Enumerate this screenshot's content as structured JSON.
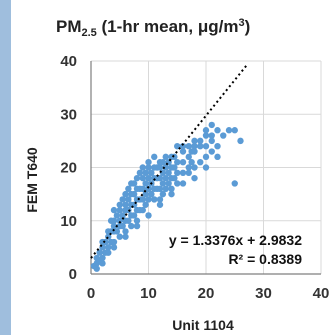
{
  "colors": {
    "left_bar": "#9fbedd",
    "points": "#5b9bd5",
    "gridline": "#d9d9d9",
    "axis": "#7f7f7f",
    "trendline": "#000000"
  },
  "chart_data": {
    "type": "scatter",
    "title_main": "PM",
    "title_sub": "2.5",
    "title_rest": " (1-hr mean, μg/m",
    "title_sup": "3",
    "title_end": ")",
    "xlabel": "Unit 1104",
    "ylabel": "FEM T640",
    "xlim": [
      0,
      40
    ],
    "ylim": [
      0,
      40
    ],
    "xticks": [
      "0",
      "10",
      "20",
      "30",
      "40"
    ],
    "yticks": [
      "0",
      "10",
      "20",
      "30",
      "40"
    ],
    "grid": true,
    "trendline": {
      "slope": 1.3376,
      "intercept": 2.9832,
      "x_range": [
        0,
        27
      ],
      "style": "dotted"
    },
    "equation_label": "y = 1.3376x + 2.9832",
    "r2_label": "R² = 0.8389",
    "series": [
      {
        "points": [
          [
            0.5,
            1.5
          ],
          [
            1,
            2
          ],
          [
            1,
            3
          ],
          [
            1.5,
            2.5
          ],
          [
            1.5,
            4
          ],
          [
            2,
            3
          ],
          [
            2,
            5
          ],
          [
            2,
            6
          ],
          [
            2.5,
            4
          ],
          [
            2.5,
            6
          ],
          [
            3,
            4
          ],
          [
            3,
            5
          ],
          [
            3,
            7
          ],
          [
            3,
            8
          ],
          [
            3.5,
            6
          ],
          [
            3.5,
            8
          ],
          [
            3.5,
            10
          ],
          [
            4,
            6
          ],
          [
            4,
            8
          ],
          [
            4,
            9
          ],
          [
            4,
            10
          ],
          [
            4,
            12
          ],
          [
            4.5,
            8
          ],
          [
            4.5,
            11
          ],
          [
            5,
            7
          ],
          [
            5,
            9
          ],
          [
            5,
            10
          ],
          [
            5,
            12
          ],
          [
            5,
            13
          ],
          [
            5.5,
            9
          ],
          [
            5.5,
            11
          ],
          [
            5.5,
            14
          ],
          [
            6,
            8
          ],
          [
            6,
            10
          ],
          [
            6,
            12
          ],
          [
            6,
            13
          ],
          [
            6,
            15
          ],
          [
            6.5,
            10
          ],
          [
            6.5,
            12
          ],
          [
            6.5,
            14
          ],
          [
            6.5,
            16
          ],
          [
            7,
            9
          ],
          [
            7,
            11
          ],
          [
            7,
            13
          ],
          [
            7,
            15
          ],
          [
            7,
            17
          ],
          [
            7.5,
            11
          ],
          [
            7.5,
            13
          ],
          [
            7.5,
            15
          ],
          [
            7.5,
            17
          ],
          [
            8,
            10
          ],
          [
            8,
            12
          ],
          [
            8,
            14
          ],
          [
            8,
            16
          ],
          [
            8,
            18
          ],
          [
            8.5,
            12
          ],
          [
            8.5,
            14
          ],
          [
            8.5,
            16
          ],
          [
            8.5,
            19
          ],
          [
            9,
            12
          ],
          [
            9,
            14
          ],
          [
            9,
            16
          ],
          [
            9,
            18
          ],
          [
            9,
            20
          ],
          [
            9.5,
            13
          ],
          [
            9.5,
            15
          ],
          [
            9.5,
            17
          ],
          [
            9.5,
            19
          ],
          [
            10,
            14
          ],
          [
            10,
            16
          ],
          [
            10,
            18
          ],
          [
            10,
            20
          ],
          [
            10,
            21
          ],
          [
            10.5,
            15
          ],
          [
            10.5,
            17
          ],
          [
            10.5,
            19
          ],
          [
            11,
            14
          ],
          [
            11,
            16
          ],
          [
            11,
            18
          ],
          [
            11,
            20
          ],
          [
            11,
            22
          ],
          [
            11.5,
            16
          ],
          [
            11.5,
            18
          ],
          [
            11.5,
            20
          ],
          [
            12,
            14
          ],
          [
            12,
            16
          ],
          [
            12,
            18
          ],
          [
            12,
            20
          ],
          [
            12,
            21
          ],
          [
            12.5,
            15
          ],
          [
            12.5,
            17
          ],
          [
            12.5,
            19
          ],
          [
            12.5,
            21
          ],
          [
            13,
            16
          ],
          [
            13,
            18
          ],
          [
            13,
            20
          ],
          [
            13,
            22
          ],
          [
            13.5,
            17
          ],
          [
            13.5,
            19
          ],
          [
            13.5,
            21
          ],
          [
            14,
            16
          ],
          [
            14,
            18
          ],
          [
            14,
            20
          ],
          [
            14,
            22
          ],
          [
            14.5,
            18
          ],
          [
            14.5,
            20
          ],
          [
            14.5,
            22
          ],
          [
            15,
            17
          ],
          [
            15,
            19
          ],
          [
            15,
            21
          ],
          [
            15,
            24
          ],
          [
            16,
            19
          ],
          [
            16,
            21
          ],
          [
            16,
            23
          ],
          [
            16,
            24
          ],
          [
            17,
            19
          ],
          [
            17,
            20
          ],
          [
            17,
            22
          ],
          [
            17,
            24
          ],
          [
            17.5,
            21
          ],
          [
            17.5,
            23
          ],
          [
            18,
            20
          ],
          [
            18,
            23
          ],
          [
            18,
            24
          ],
          [
            18,
            25
          ],
          [
            19,
            21
          ],
          [
            19,
            24
          ],
          [
            19,
            25
          ],
          [
            20,
            22
          ],
          [
            20,
            24
          ],
          [
            20,
            26
          ],
          [
            20,
            27
          ],
          [
            21,
            23
          ],
          [
            21,
            25
          ],
          [
            21,
            26
          ],
          [
            21,
            28
          ],
          [
            22,
            27
          ],
          [
            22,
            24
          ],
          [
            23,
            26
          ],
          [
            24,
            27
          ],
          [
            25,
            27
          ],
          [
            26,
            25
          ],
          [
            25,
            17
          ],
          [
            22,
            22
          ],
          [
            20,
            20
          ],
          [
            18,
            18
          ],
          [
            16,
            17
          ],
          [
            14,
            15
          ],
          [
            12,
            13
          ],
          [
            10,
            11
          ],
          [
            8,
            9
          ],
          [
            6,
            7
          ],
          [
            4,
            5
          ],
          [
            2,
            2
          ],
          [
            1,
            1
          ]
        ]
      }
    ]
  }
}
